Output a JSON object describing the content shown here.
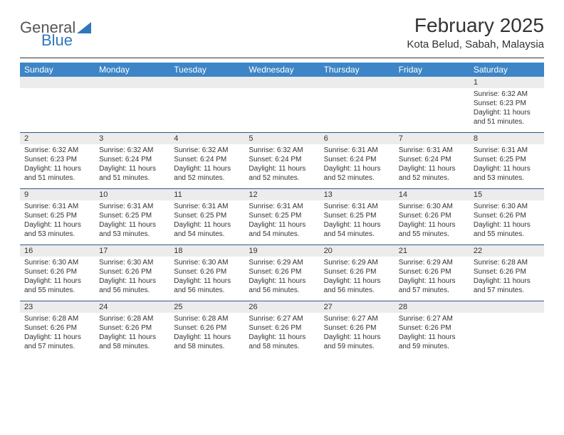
{
  "logo": {
    "text1": "General",
    "text2": "Blue"
  },
  "title": {
    "month": "February 2025",
    "location": "Kota Belud, Sabah, Malaysia"
  },
  "colors": {
    "header_bg": "#3d85c6",
    "header_text": "#ffffff",
    "daynum_bg": "#ececec",
    "week_border": "#2f5a8a",
    "logo_blue": "#2f77bd"
  },
  "day_labels": [
    "Sunday",
    "Monday",
    "Tuesday",
    "Wednesday",
    "Thursday",
    "Friday",
    "Saturday"
  ],
  "weeks": [
    [
      {
        "num": "",
        "lines": []
      },
      {
        "num": "",
        "lines": []
      },
      {
        "num": "",
        "lines": []
      },
      {
        "num": "",
        "lines": []
      },
      {
        "num": "",
        "lines": []
      },
      {
        "num": "",
        "lines": []
      },
      {
        "num": "1",
        "lines": [
          "Sunrise: 6:32 AM",
          "Sunset: 6:23 PM",
          "Daylight: 11 hours and 51 minutes."
        ]
      }
    ],
    [
      {
        "num": "2",
        "lines": [
          "Sunrise: 6:32 AM",
          "Sunset: 6:23 PM",
          "Daylight: 11 hours and 51 minutes."
        ]
      },
      {
        "num": "3",
        "lines": [
          "Sunrise: 6:32 AM",
          "Sunset: 6:24 PM",
          "Daylight: 11 hours and 51 minutes."
        ]
      },
      {
        "num": "4",
        "lines": [
          "Sunrise: 6:32 AM",
          "Sunset: 6:24 PM",
          "Daylight: 11 hours and 52 minutes."
        ]
      },
      {
        "num": "5",
        "lines": [
          "Sunrise: 6:32 AM",
          "Sunset: 6:24 PM",
          "Daylight: 11 hours and 52 minutes."
        ]
      },
      {
        "num": "6",
        "lines": [
          "Sunrise: 6:31 AM",
          "Sunset: 6:24 PM",
          "Daylight: 11 hours and 52 minutes."
        ]
      },
      {
        "num": "7",
        "lines": [
          "Sunrise: 6:31 AM",
          "Sunset: 6:24 PM",
          "Daylight: 11 hours and 52 minutes."
        ]
      },
      {
        "num": "8",
        "lines": [
          "Sunrise: 6:31 AM",
          "Sunset: 6:25 PM",
          "Daylight: 11 hours and 53 minutes."
        ]
      }
    ],
    [
      {
        "num": "9",
        "lines": [
          "Sunrise: 6:31 AM",
          "Sunset: 6:25 PM",
          "Daylight: 11 hours and 53 minutes."
        ]
      },
      {
        "num": "10",
        "lines": [
          "Sunrise: 6:31 AM",
          "Sunset: 6:25 PM",
          "Daylight: 11 hours and 53 minutes."
        ]
      },
      {
        "num": "11",
        "lines": [
          "Sunrise: 6:31 AM",
          "Sunset: 6:25 PM",
          "Daylight: 11 hours and 54 minutes."
        ]
      },
      {
        "num": "12",
        "lines": [
          "Sunrise: 6:31 AM",
          "Sunset: 6:25 PM",
          "Daylight: 11 hours and 54 minutes."
        ]
      },
      {
        "num": "13",
        "lines": [
          "Sunrise: 6:31 AM",
          "Sunset: 6:25 PM",
          "Daylight: 11 hours and 54 minutes."
        ]
      },
      {
        "num": "14",
        "lines": [
          "Sunrise: 6:30 AM",
          "Sunset: 6:26 PM",
          "Daylight: 11 hours and 55 minutes."
        ]
      },
      {
        "num": "15",
        "lines": [
          "Sunrise: 6:30 AM",
          "Sunset: 6:26 PM",
          "Daylight: 11 hours and 55 minutes."
        ]
      }
    ],
    [
      {
        "num": "16",
        "lines": [
          "Sunrise: 6:30 AM",
          "Sunset: 6:26 PM",
          "Daylight: 11 hours and 55 minutes."
        ]
      },
      {
        "num": "17",
        "lines": [
          "Sunrise: 6:30 AM",
          "Sunset: 6:26 PM",
          "Daylight: 11 hours and 56 minutes."
        ]
      },
      {
        "num": "18",
        "lines": [
          "Sunrise: 6:30 AM",
          "Sunset: 6:26 PM",
          "Daylight: 11 hours and 56 minutes."
        ]
      },
      {
        "num": "19",
        "lines": [
          "Sunrise: 6:29 AM",
          "Sunset: 6:26 PM",
          "Daylight: 11 hours and 56 minutes."
        ]
      },
      {
        "num": "20",
        "lines": [
          "Sunrise: 6:29 AM",
          "Sunset: 6:26 PM",
          "Daylight: 11 hours and 56 minutes."
        ]
      },
      {
        "num": "21",
        "lines": [
          "Sunrise: 6:29 AM",
          "Sunset: 6:26 PM",
          "Daylight: 11 hours and 57 minutes."
        ]
      },
      {
        "num": "22",
        "lines": [
          "Sunrise: 6:28 AM",
          "Sunset: 6:26 PM",
          "Daylight: 11 hours and 57 minutes."
        ]
      }
    ],
    [
      {
        "num": "23",
        "lines": [
          "Sunrise: 6:28 AM",
          "Sunset: 6:26 PM",
          "Daylight: 11 hours and 57 minutes."
        ]
      },
      {
        "num": "24",
        "lines": [
          "Sunrise: 6:28 AM",
          "Sunset: 6:26 PM",
          "Daylight: 11 hours and 58 minutes."
        ]
      },
      {
        "num": "25",
        "lines": [
          "Sunrise: 6:28 AM",
          "Sunset: 6:26 PM",
          "Daylight: 11 hours and 58 minutes."
        ]
      },
      {
        "num": "26",
        "lines": [
          "Sunrise: 6:27 AM",
          "Sunset: 6:26 PM",
          "Daylight: 11 hours and 58 minutes."
        ]
      },
      {
        "num": "27",
        "lines": [
          "Sunrise: 6:27 AM",
          "Sunset: 6:26 PM",
          "Daylight: 11 hours and 59 minutes."
        ]
      },
      {
        "num": "28",
        "lines": [
          "Sunrise: 6:27 AM",
          "Sunset: 6:26 PM",
          "Daylight: 11 hours and 59 minutes."
        ]
      },
      {
        "num": "",
        "lines": []
      }
    ]
  ]
}
